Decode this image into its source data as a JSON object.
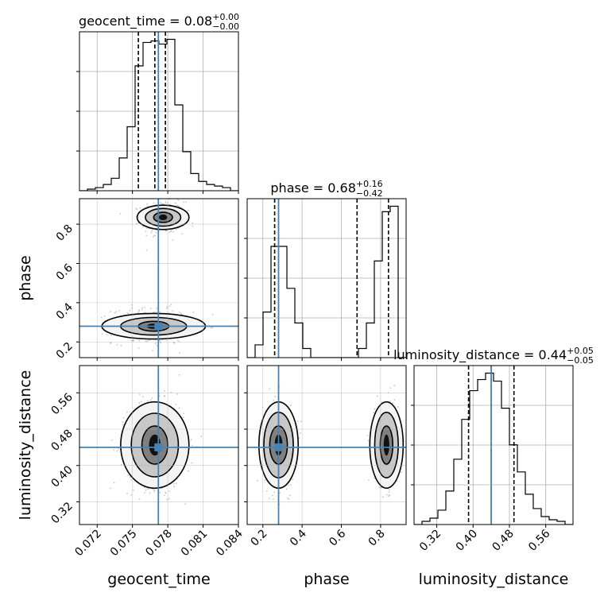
{
  "chart_data": {
    "type": "corner",
    "colors": {
      "truth": "#4682b4",
      "hist": "#000000",
      "grid": "#b0b0b0",
      "points": "#808080"
    },
    "grid": true,
    "parameters": [
      {
        "name": "geocent_time",
        "label": "geocent_time",
        "range": [
          0.0705,
          0.084
        ],
        "ticks": [
          0.072,
          0.075,
          0.078,
          0.081,
          0.084
        ],
        "tick_labels": [
          "0.072",
          "0.075",
          "0.078",
          "0.081",
          "0.084"
        ],
        "truth": 0.0772,
        "quantiles": [
          0.0755,
          0.0769,
          0.0778
        ],
        "title": {
          "main": "geocent_time = 0.08",
          "sup": "+0.00",
          "sub": "−0.00"
        },
        "hist": {
          "edges_start": 0.0705,
          "bin_width": 0.000675,
          "counts": [
            0.0,
            0.01,
            0.02,
            0.04,
            0.08,
            0.21,
            0.41,
            0.8,
            0.95,
            0.96,
            0.94,
            0.97,
            0.55,
            0.25,
            0.11,
            0.06,
            0.04,
            0.03,
            0.02,
            0.0
          ]
        }
      },
      {
        "name": "phase",
        "label": "phase",
        "range": [
          0.12,
          0.93
        ],
        "ticks": [
          0.2,
          0.4,
          0.6,
          0.8
        ],
        "tick_labels": [
          "0.2",
          "0.4",
          "0.6",
          "0.8"
        ],
        "truth": 0.28,
        "quantiles": [
          0.26,
          0.68,
          0.84
        ],
        "title": {
          "main": "phase = 0.68",
          "sup": "+0.16",
          "sub": "−0.42"
        },
        "hist": {
          "edges_start": 0.12,
          "bin_width": 0.0405,
          "counts": [
            0.0,
            0.07,
            0.25,
            0.61,
            0.61,
            0.38,
            0.19,
            0.05,
            0.0,
            0.0,
            0.0,
            0.0,
            0.0,
            0.0,
            0.05,
            0.19,
            0.53,
            0.8,
            0.83,
            0.0
          ]
        }
      },
      {
        "name": "luminosity_distance",
        "label": "luminosity_distance",
        "range": [
          0.27,
          0.62
        ],
        "ticks": [
          0.32,
          0.4,
          0.48,
          0.56
        ],
        "tick_labels": [
          "0.32",
          "0.40",
          "0.48",
          "0.56"
        ],
        "truth": 0.44,
        "quantiles": [
          0.39,
          0.44,
          0.49
        ],
        "title": {
          "main": "luminosity_distance = 0.44",
          "sup": "+0.05",
          "sub": "−0.05"
        },
        "hist": {
          "edges_start": 0.27,
          "bin_width": 0.0175,
          "counts": [
            0.0,
            0.02,
            0.04,
            0.09,
            0.21,
            0.41,
            0.66,
            0.84,
            0.91,
            0.95,
            0.9,
            0.73,
            0.5,
            0.33,
            0.19,
            0.1,
            0.05,
            0.03,
            0.02,
            0.0
          ]
        }
      }
    ],
    "pairs": [
      {
        "x": "geocent_time",
        "y": "phase",
        "clusters": [
          {
            "cx": 0.0776,
            "cy": 0.835,
            "sx": 0.0009,
            "sy": 0.04,
            "n": 450
          },
          {
            "cx": 0.0767,
            "cy": 0.28,
            "sx": 0.0017,
            "sy": 0.045,
            "n": 380
          }
        ],
        "contours": [
          {
            "cx": 0.0776,
            "cy": 0.835,
            "levels": [
              [
                0.0022,
                0.062
              ],
              [
                0.0015,
                0.045
              ],
              [
                0.0008,
                0.026
              ]
            ]
          },
          {
            "cx": 0.0768,
            "cy": 0.28,
            "levels": [
              [
                0.0044,
                0.065
              ],
              [
                0.0028,
                0.045
              ],
              [
                0.0013,
                0.025
              ]
            ]
          }
        ]
      },
      {
        "x": "geocent_time",
        "y": "luminosity_distance",
        "clusters": [
          {
            "cx": 0.077,
            "cy": 0.445,
            "sx": 0.0012,
            "sy": 0.045,
            "n": 900
          }
        ],
        "contours": [
          {
            "cx": 0.0769,
            "cy": 0.445,
            "levels": [
              [
                0.0029,
                0.095
              ],
              [
                0.002,
                0.07
              ],
              [
                0.0011,
                0.042
              ]
            ]
          }
        ]
      },
      {
        "x": "phase",
        "y": "luminosity_distance",
        "clusters": [
          {
            "cx": 0.28,
            "cy": 0.445,
            "sx": 0.04,
            "sy": 0.045,
            "n": 500
          },
          {
            "cx": 0.83,
            "cy": 0.445,
            "sx": 0.03,
            "sy": 0.045,
            "n": 500
          }
        ],
        "contours": [
          {
            "cx": 0.28,
            "cy": 0.445,
            "levels": [
              [
                0.1,
                0.095
              ],
              [
                0.075,
                0.072
              ],
              [
                0.045,
                0.042
              ]
            ]
          },
          {
            "cx": 0.83,
            "cy": 0.445,
            "levels": [
              [
                0.085,
                0.095
              ],
              [
                0.06,
                0.072
              ],
              [
                0.032,
                0.042
              ]
            ]
          }
        ]
      }
    ]
  }
}
